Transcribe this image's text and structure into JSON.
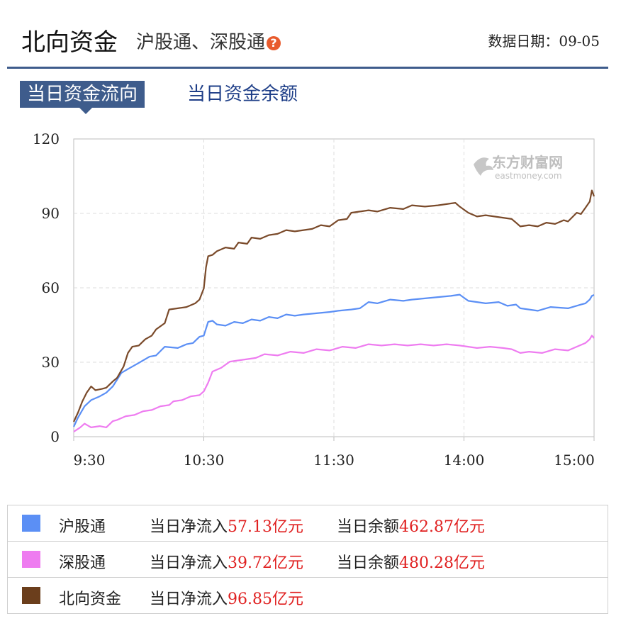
{
  "header": {
    "title": "北向资金",
    "subtitle": "沪股通、深股通",
    "help_icon": "question-icon",
    "date_label": "数据日期：",
    "date_value": "09-05"
  },
  "tabs": [
    {
      "label": "当日资金流向",
      "active": true
    },
    {
      "label": "当日资金余额",
      "active": false
    }
  ],
  "watermark": {
    "cn": "东方财富网",
    "en": "eastmoney.com"
  },
  "colors": {
    "sh": "#5b8ff5",
    "sz": "#ee7cf0",
    "north": "#7a4a2a",
    "accent": "#3e5c8c",
    "value": "#e02020"
  },
  "chart_data": {
    "type": "line",
    "title": "",
    "xlabel": "",
    "ylabel": "",
    "ylim": [
      0,
      120
    ],
    "yticks": [
      "0",
      "30",
      "60",
      "90",
      "120"
    ],
    "xtick_labels": [
      "9:30",
      "10:30",
      "11:30",
      "14:00",
      "15:00"
    ],
    "xtick_index": [
      0,
      60,
      120,
      180,
      240
    ],
    "x_count": 241,
    "grid": true,
    "series": [
      {
        "name": "沪股通",
        "color": "#5b8ff5",
        "points": [
          [
            0,
            4
          ],
          [
            2,
            8
          ],
          [
            5,
            12
          ],
          [
            8,
            15
          ],
          [
            12,
            16
          ],
          [
            15,
            18
          ],
          [
            18,
            20
          ],
          [
            22,
            26
          ],
          [
            25,
            27
          ],
          [
            30,
            30
          ],
          [
            35,
            32
          ],
          [
            38,
            33
          ],
          [
            42,
            36
          ],
          [
            48,
            36
          ],
          [
            52,
            37
          ],
          [
            55,
            38
          ],
          [
            58,
            40
          ],
          [
            60,
            41
          ],
          [
            62,
            46
          ],
          [
            64,
            47
          ],
          [
            66,
            45
          ],
          [
            70,
            45
          ],
          [
            74,
            46
          ],
          [
            78,
            46
          ],
          [
            82,
            47
          ],
          [
            86,
            47
          ],
          [
            90,
            48
          ],
          [
            94,
            48
          ],
          [
            98,
            49
          ],
          [
            102,
            49
          ],
          [
            106,
            49
          ],
          [
            112,
            50
          ],
          [
            118,
            50
          ],
          [
            122,
            51
          ],
          [
            128,
            51
          ],
          [
            132,
            52
          ],
          [
            136,
            54
          ],
          [
            140,
            54
          ],
          [
            146,
            55
          ],
          [
            152,
            55
          ],
          [
            156,
            55
          ],
          [
            162,
            56
          ],
          [
            168,
            56
          ],
          [
            174,
            57
          ],
          [
            178,
            57
          ],
          [
            182,
            55
          ],
          [
            186,
            54
          ],
          [
            190,
            54
          ],
          [
            196,
            54
          ],
          [
            200,
            53
          ],
          [
            204,
            53
          ],
          [
            206,
            52
          ],
          [
            210,
            51
          ],
          [
            214,
            51
          ],
          [
            220,
            52
          ],
          [
            228,
            52
          ],
          [
            234,
            53
          ],
          [
            236,
            54
          ],
          [
            238,
            55
          ],
          [
            239,
            57
          ],
          [
            240,
            57.13
          ]
        ]
      },
      {
        "name": "深股通",
        "color": "#ee7cf0",
        "points": [
          [
            0,
            2
          ],
          [
            3,
            4
          ],
          [
            5,
            5
          ],
          [
            8,
            4
          ],
          [
            12,
            4
          ],
          [
            15,
            4
          ],
          [
            18,
            6
          ],
          [
            20,
            7
          ],
          [
            24,
            8
          ],
          [
            28,
            9
          ],
          [
            32,
            10
          ],
          [
            36,
            11
          ],
          [
            40,
            12
          ],
          [
            44,
            13
          ],
          [
            46,
            14
          ],
          [
            50,
            15
          ],
          [
            54,
            16
          ],
          [
            58,
            17
          ],
          [
            60,
            18
          ],
          [
            62,
            22
          ],
          [
            64,
            26
          ],
          [
            68,
            28
          ],
          [
            72,
            30
          ],
          [
            76,
            31
          ],
          [
            80,
            31
          ],
          [
            84,
            32
          ],
          [
            88,
            33
          ],
          [
            94,
            33
          ],
          [
            100,
            34
          ],
          [
            106,
            34
          ],
          [
            112,
            35
          ],
          [
            118,
            35
          ],
          [
            124,
            36
          ],
          [
            130,
            36
          ],
          [
            136,
            37
          ],
          [
            142,
            37
          ],
          [
            148,
            37
          ],
          [
            154,
            37
          ],
          [
            160,
            37
          ],
          [
            166,
            37
          ],
          [
            172,
            37
          ],
          [
            178,
            37
          ],
          [
            182,
            36
          ],
          [
            186,
            36
          ],
          [
            192,
            36
          ],
          [
            198,
            36
          ],
          [
            202,
            35
          ],
          [
            206,
            34
          ],
          [
            210,
            34
          ],
          [
            216,
            34
          ],
          [
            222,
            35
          ],
          [
            228,
            35
          ],
          [
            232,
            36
          ],
          [
            236,
            38
          ],
          [
            238,
            39
          ],
          [
            239,
            41
          ],
          [
            240,
            39.72
          ]
        ]
      },
      {
        "name": "北向资金",
        "color": "#7a4a2a",
        "points": [
          [
            0,
            6
          ],
          [
            2,
            10
          ],
          [
            4,
            14
          ],
          [
            6,
            18
          ],
          [
            8,
            20
          ],
          [
            10,
            19
          ],
          [
            13,
            19
          ],
          [
            15,
            20
          ],
          [
            18,
            22
          ],
          [
            20,
            24
          ],
          [
            23,
            28
          ],
          [
            25,
            34
          ],
          [
            27,
            36
          ],
          [
            30,
            37
          ],
          [
            33,
            39
          ],
          [
            36,
            41
          ],
          [
            38,
            43
          ],
          [
            42,
            46
          ],
          [
            44,
            51
          ],
          [
            48,
            52
          ],
          [
            52,
            52
          ],
          [
            56,
            54
          ],
          [
            58,
            55
          ],
          [
            60,
            60
          ],
          [
            61,
            68
          ],
          [
            62,
            73
          ],
          [
            64,
            73
          ],
          [
            66,
            75
          ],
          [
            70,
            76
          ],
          [
            74,
            76
          ],
          [
            76,
            78
          ],
          [
            80,
            78
          ],
          [
            82,
            80
          ],
          [
            86,
            80
          ],
          [
            90,
            81
          ],
          [
            94,
            82
          ],
          [
            98,
            83
          ],
          [
            102,
            83
          ],
          [
            106,
            83
          ],
          [
            110,
            84
          ],
          [
            114,
            85
          ],
          [
            118,
            85
          ],
          [
            122,
            87
          ],
          [
            126,
            88
          ],
          [
            128,
            90
          ],
          [
            132,
            91
          ],
          [
            136,
            91
          ],
          [
            140,
            91
          ],
          [
            146,
            92
          ],
          [
            152,
            92
          ],
          [
            156,
            93
          ],
          [
            162,
            93
          ],
          [
            168,
            93
          ],
          [
            172,
            94
          ],
          [
            176,
            94
          ],
          [
            178,
            93
          ],
          [
            182,
            90
          ],
          [
            186,
            89
          ],
          [
            190,
            89
          ],
          [
            194,
            89
          ],
          [
            198,
            88
          ],
          [
            202,
            88
          ],
          [
            204,
            86
          ],
          [
            206,
            85
          ],
          [
            210,
            85
          ],
          [
            214,
            85
          ],
          [
            218,
            86
          ],
          [
            222,
            86
          ],
          [
            226,
            87
          ],
          [
            228,
            87
          ],
          [
            232,
            90
          ],
          [
            234,
            90
          ],
          [
            236,
            92
          ],
          [
            238,
            95
          ],
          [
            239,
            99
          ],
          [
            240,
            96.85
          ]
        ]
      }
    ]
  },
  "legend": {
    "inflow_label": "当日净流入",
    "balance_label": "当日余额",
    "unit": "亿元",
    "rows": [
      {
        "name": "沪股通",
        "color": "#5b8ff5",
        "inflow": "57.13亿元",
        "balance": "462.87亿元"
      },
      {
        "name": "深股通",
        "color": "#ee7cf0",
        "inflow": "39.72亿元",
        "balance": "480.28亿元"
      },
      {
        "name": "北向资金",
        "color": "#7a4a2a",
        "inflow": "96.85亿元",
        "balance": ""
      }
    ]
  }
}
